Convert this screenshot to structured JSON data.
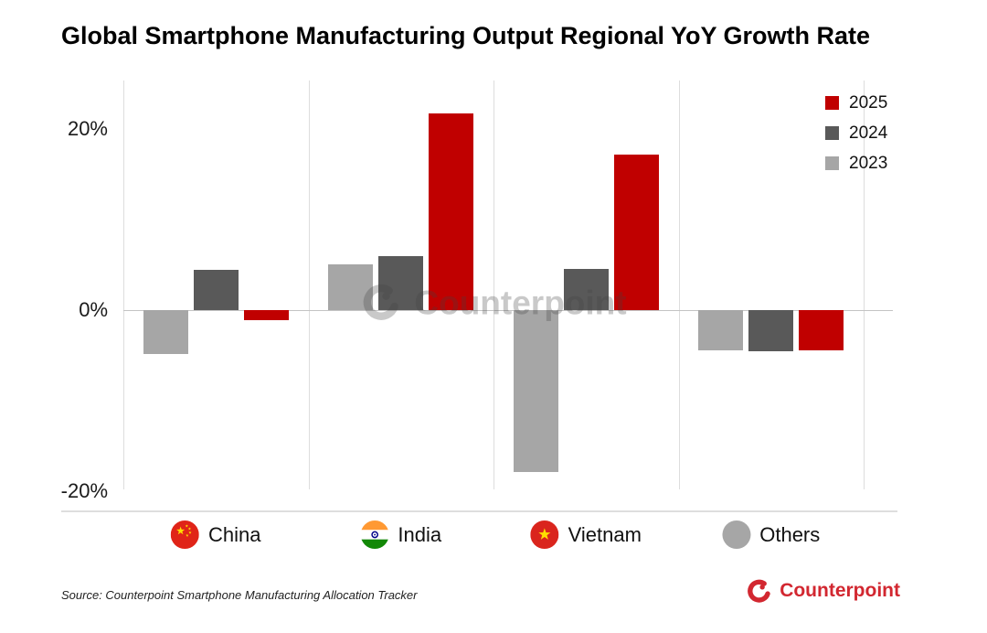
{
  "title": "Global Smartphone Manufacturing Output Regional YoY Growth Rate",
  "legend": {
    "items": [
      {
        "label": "2025",
        "color": "#C00000"
      },
      {
        "label": "2024",
        "color": "#595959"
      },
      {
        "label": "2023",
        "color": "#A6A6A6"
      }
    ]
  },
  "chart_data": {
    "type": "bar",
    "title": "Global Smartphone Manufacturing Output Regional YoY Growth Rate",
    "categories": [
      "China",
      "India",
      "Vietnam",
      "Others"
    ],
    "series": [
      {
        "name": "2023",
        "color": "#A6A6A6",
        "values": [
          -4.8,
          5.1,
          -17.9,
          -4.4
        ]
      },
      {
        "name": "2024",
        "color": "#595959",
        "values": [
          4.4,
          6.0,
          4.5,
          -4.5
        ]
      },
      {
        "name": "2025",
        "color": "#C00000",
        "values": [
          -1.1,
          21.7,
          17.2,
          -4.4
        ]
      }
    ],
    "unit": "%",
    "yticks": [
      {
        "label": "20%",
        "value": 20
      },
      {
        "label": "0%",
        "value": 0
      },
      {
        "label": "-20%",
        "value": -20
      }
    ],
    "ylim": [
      -20,
      25.4
    ],
    "grid": "vertical",
    "legend_position": "top-right"
  },
  "category_row": {
    "items": [
      {
        "label": "China",
        "icon": "china-flag-icon"
      },
      {
        "label": "India",
        "icon": "india-flag-icon"
      },
      {
        "label": "Vietnam",
        "icon": "vietnam-flag-icon"
      },
      {
        "label": "Others",
        "icon": "others-circle-icon"
      }
    ]
  },
  "watermark": {
    "text": "Counterpoint"
  },
  "source_note": "Source: Counterpoint Smartphone Manufacturing Allocation Tracker",
  "brand": {
    "name": "Counterpoint",
    "color": "#D22730"
  }
}
